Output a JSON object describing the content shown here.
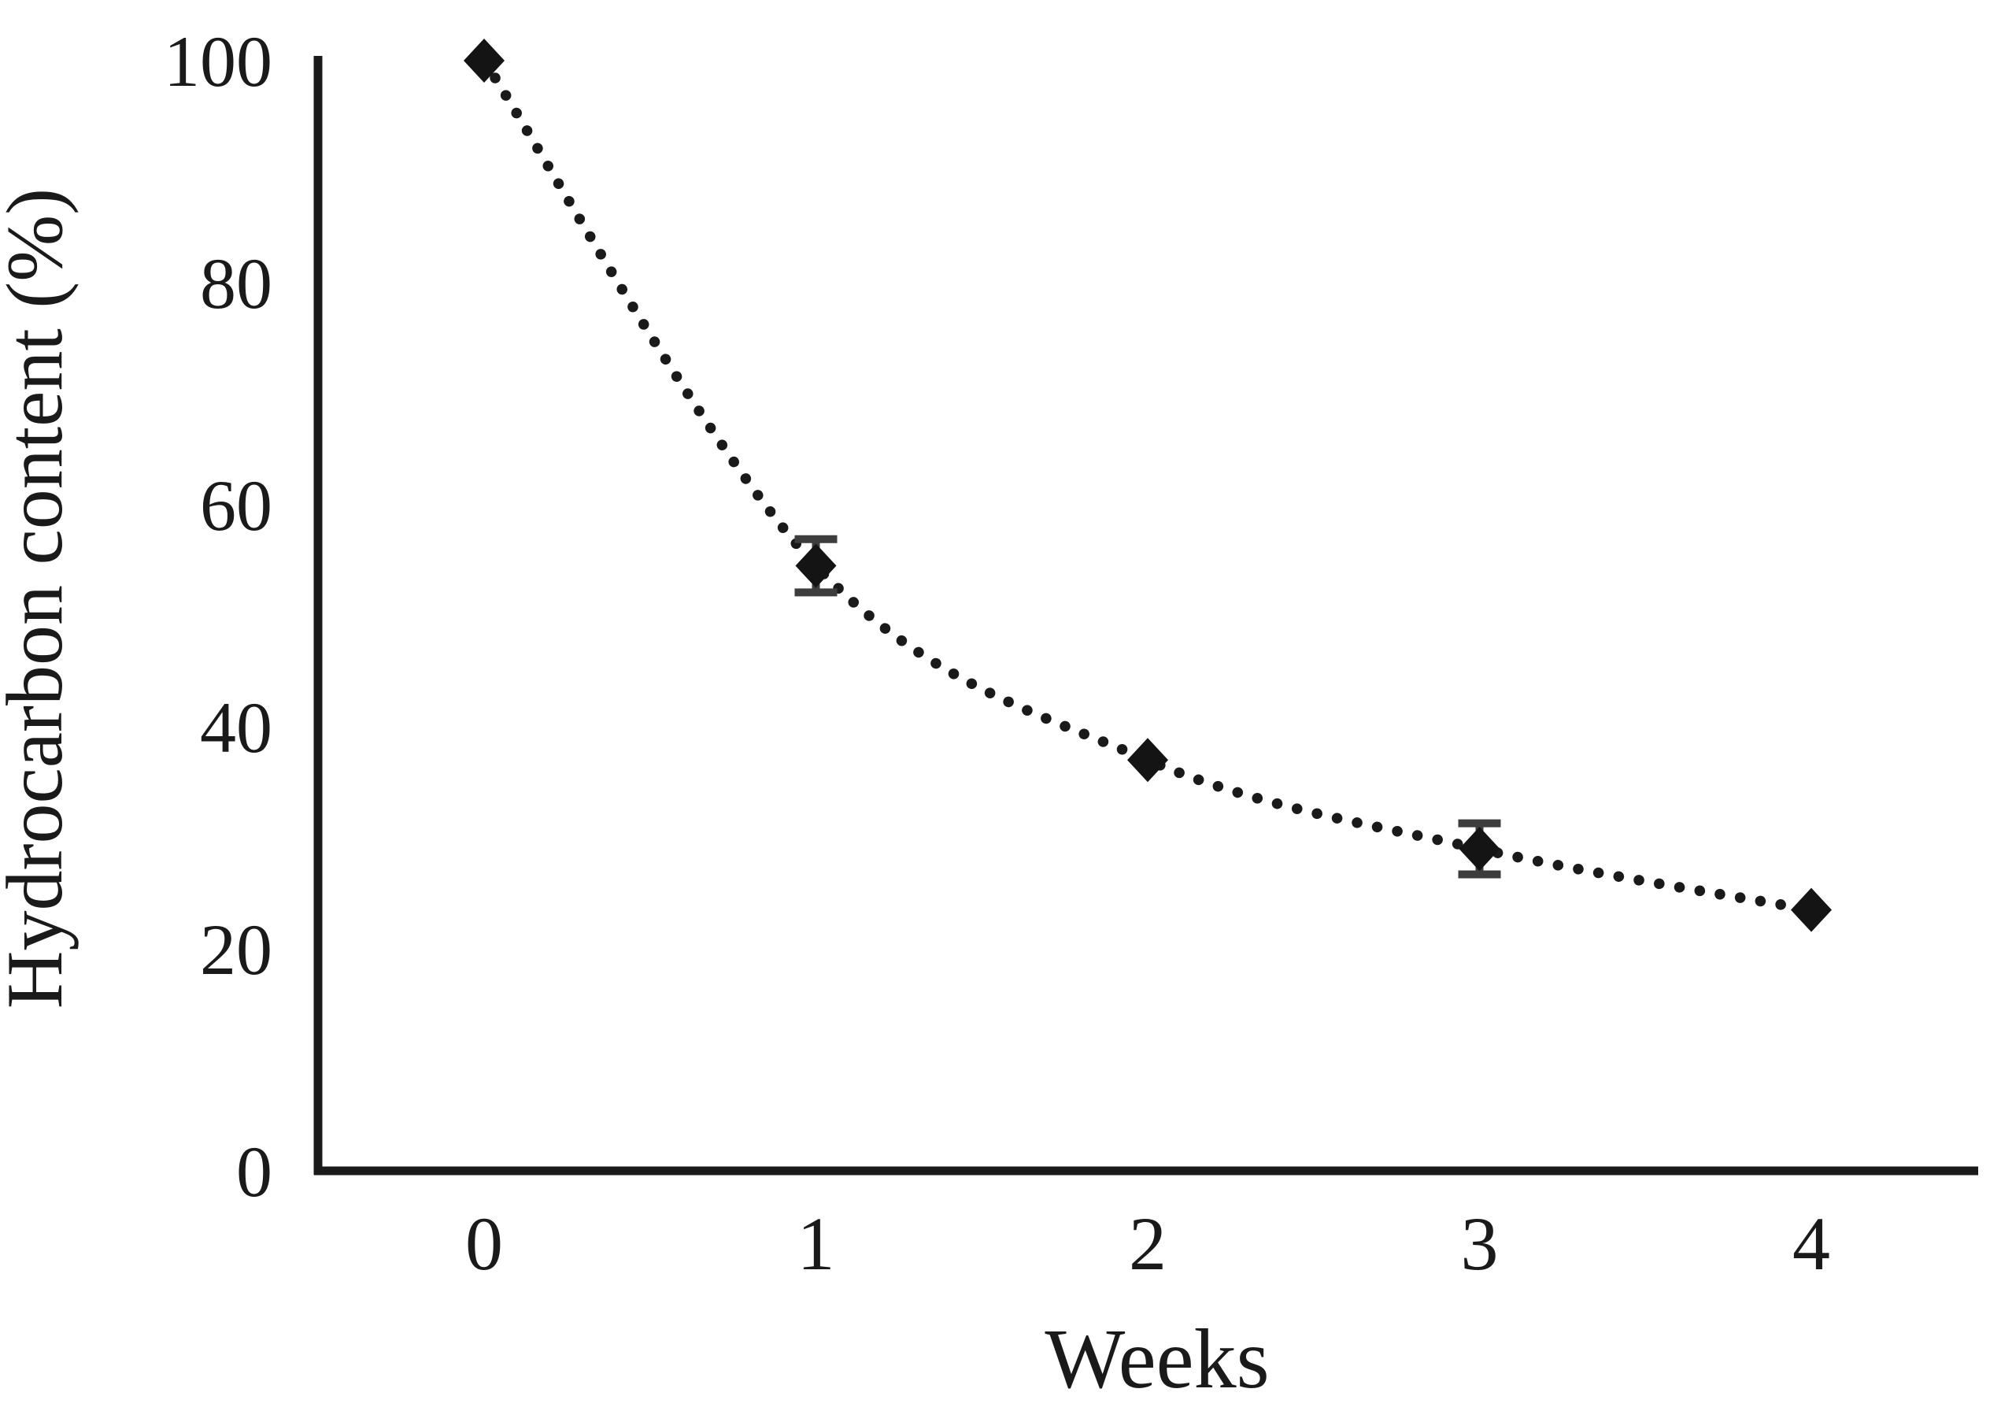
{
  "figure": {
    "background_color": "#ffffff",
    "description": "Dotted line chart with black diamond markers and error bars showing hydrocarbon content decline over weeks"
  },
  "chart_data": {
    "type": "line",
    "title": "",
    "xlabel": "Weeks",
    "ylabel": "Hydrocarbon content (%)",
    "categories": [
      "0",
      "1",
      "2",
      "3",
      "4"
    ],
    "series": [
      {
        "name": "Hydrocarbon content",
        "values": [
          100,
          54.5,
          37,
          29,
          23.5
        ],
        "errors": [
          0,
          2.4,
          0,
          2.3,
          0
        ]
      }
    ],
    "x_values_weeks": [
      0,
      1,
      2,
      3,
      4
    ],
    "ylim": [
      0,
      100
    ],
    "yticks": [
      0,
      20,
      40,
      60,
      80,
      100
    ],
    "grid": "off",
    "legend": "none",
    "line_style": "dotted",
    "line_smoothing": "smooth",
    "marker": "diamond",
    "colors": {
      "line": "#1a1a1a",
      "marker": "#141414",
      "error_bar": "#3d3d3d",
      "axis": "#1a1a1a",
      "text": "#1a1a1a",
      "background": "#ffffff"
    }
  }
}
